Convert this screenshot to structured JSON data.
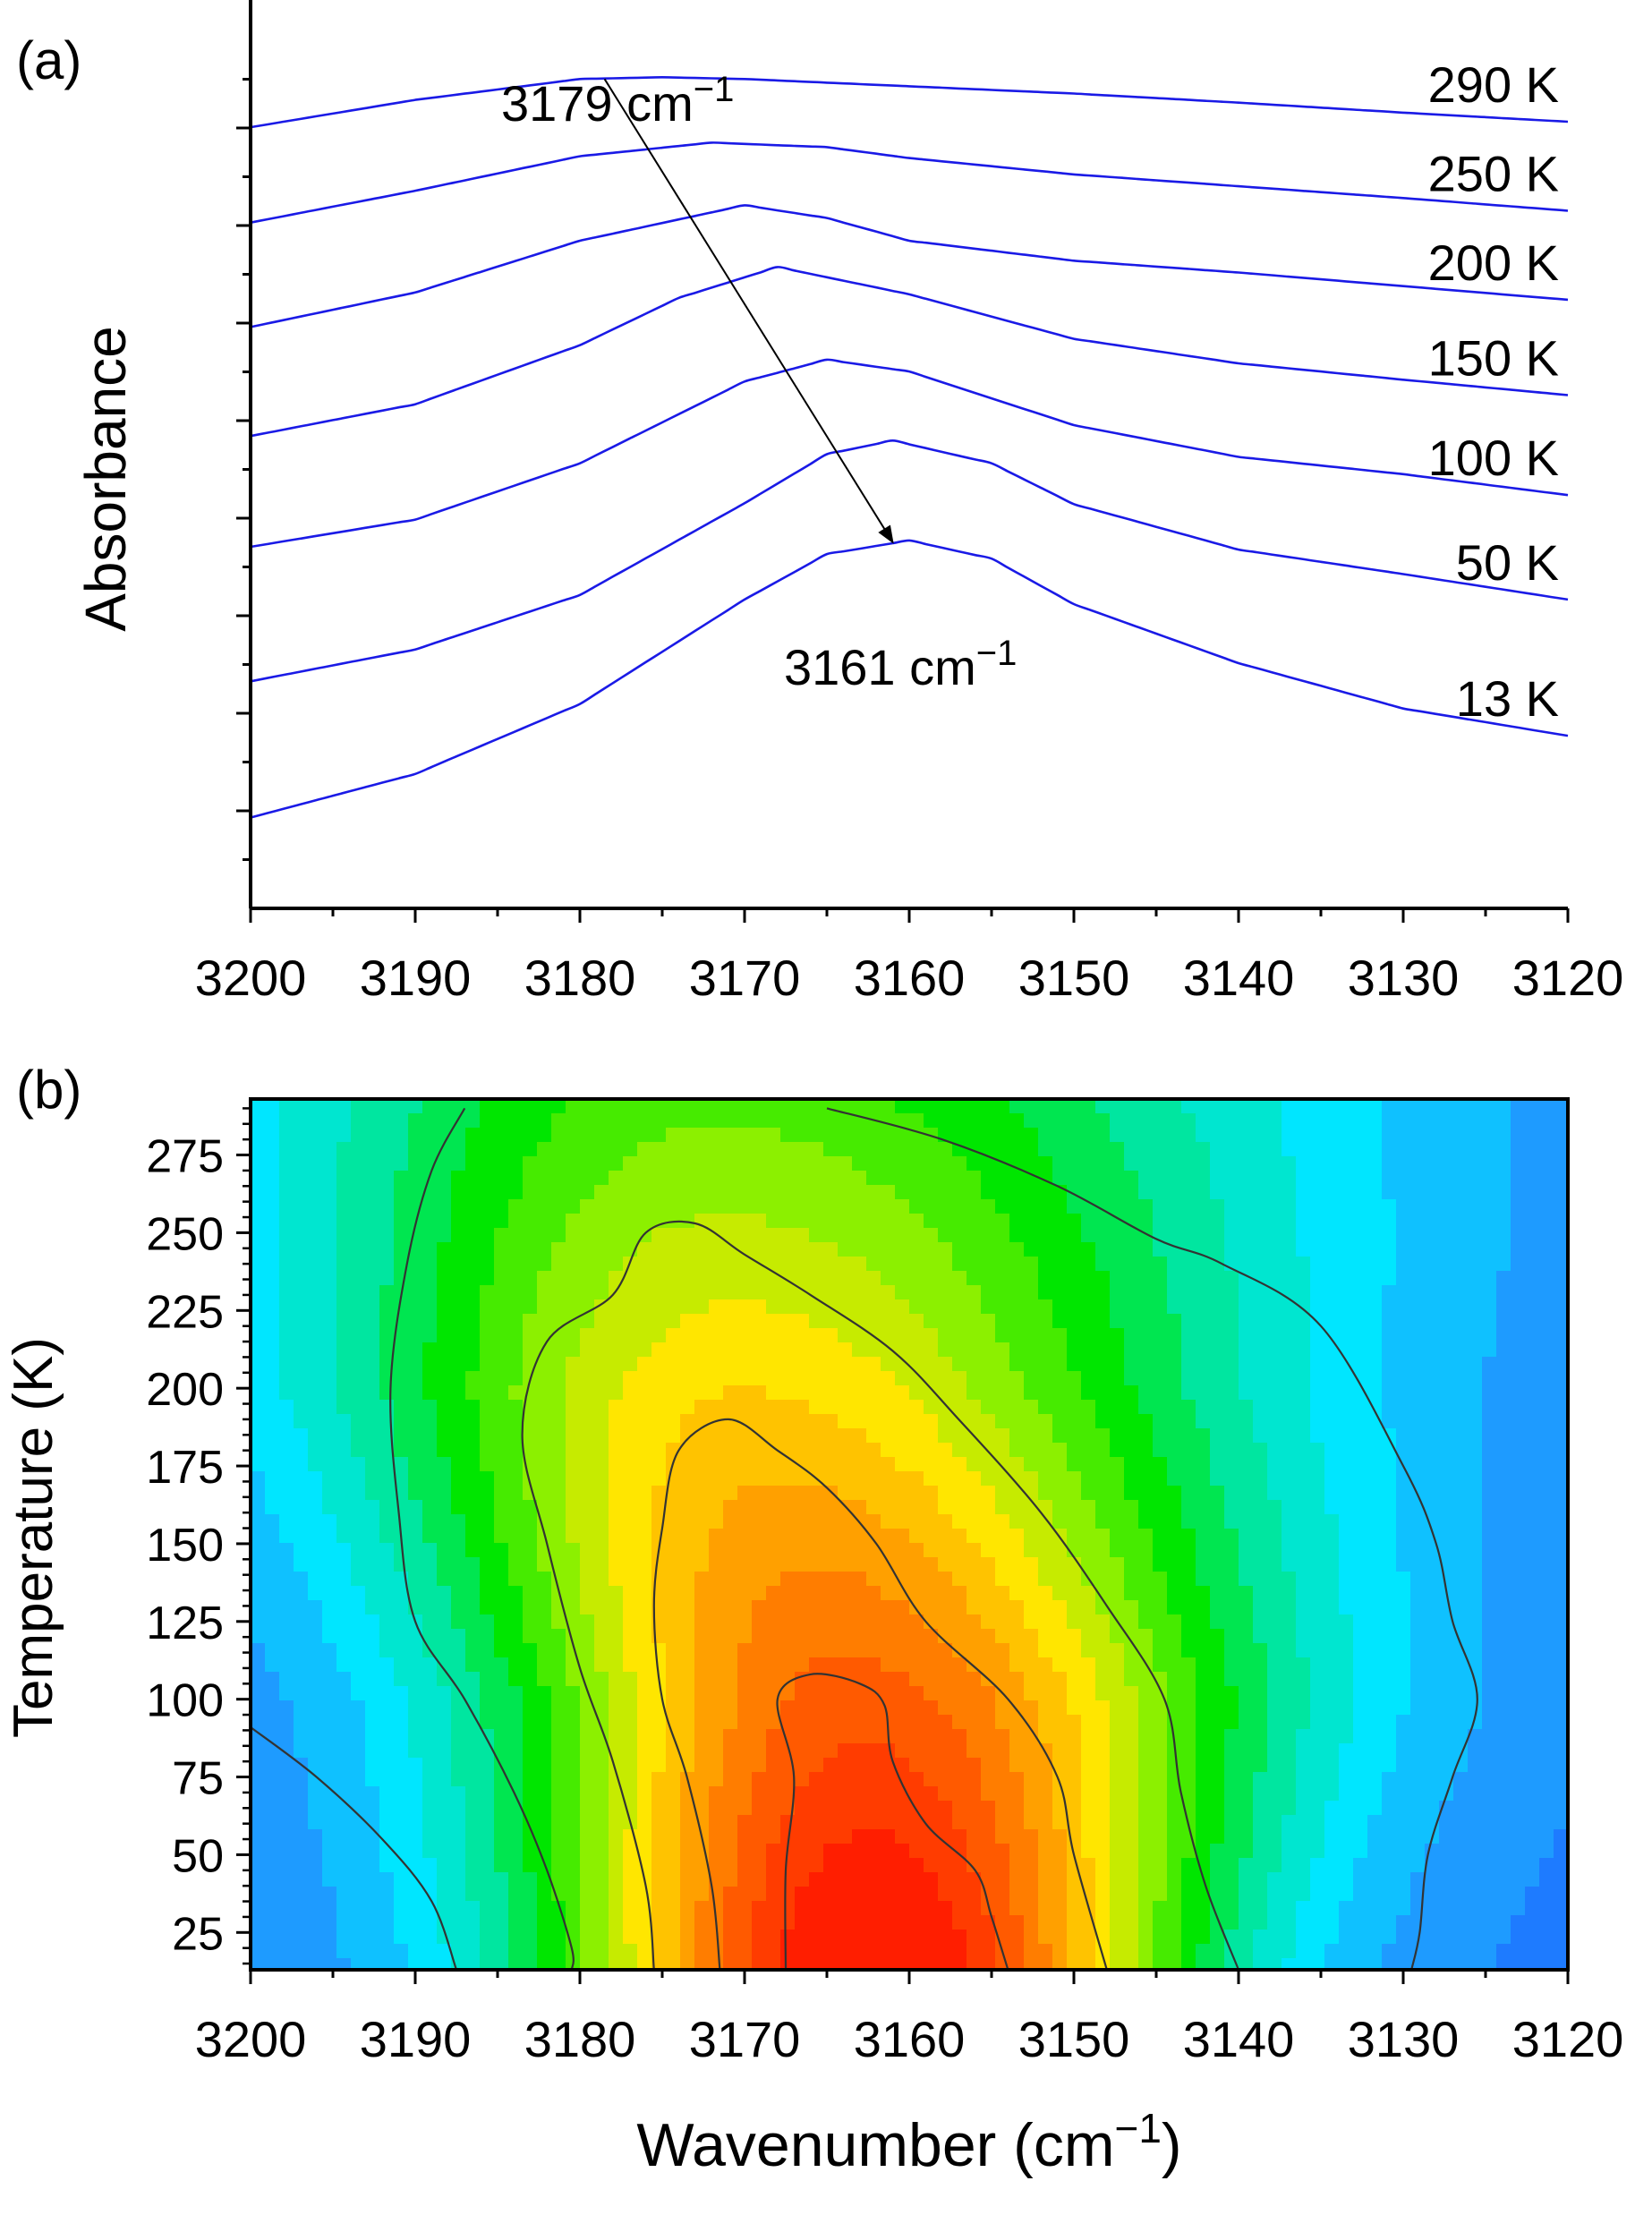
{
  "figure": {
    "panel_a_label": "(a)",
    "panel_b_label": "(b)",
    "xlabel_main": "Wavenumber (cm",
    "xlabel_sup": "−1",
    "xlabel_close": ")"
  },
  "chart_data": [
    {
      "type": "line",
      "panel": "(a)",
      "ylabel": "Absorbance",
      "xlim": [
        3200,
        3120
      ],
      "x_ticks": [
        "3200",
        "3190",
        "3180",
        "3170",
        "3160",
        "3150",
        "3140",
        "3130",
        "3120"
      ],
      "line_color": "#1a1ae6",
      "series": [
        {
          "name": "290 K",
          "x": [
            3200,
            3190,
            3180,
            3175,
            3170,
            3160,
            3150,
            3140,
            3130,
            3120
          ],
          "y": [
            0.86,
            0.89,
            0.913,
            0.915,
            0.913,
            0.905,
            0.897,
            0.887,
            0.876,
            0.866
          ]
        },
        {
          "name": "250 K",
          "x": [
            3200,
            3190,
            3180,
            3172,
            3165,
            3160,
            3150,
            3140,
            3130,
            3120
          ],
          "y": [
            0.755,
            0.79,
            0.828,
            0.843,
            0.838,
            0.826,
            0.808,
            0.795,
            0.782,
            0.768
          ]
        },
        {
          "name": "200 K",
          "x": [
            3200,
            3190,
            3180,
            3170,
            3165,
            3160,
            3150,
            3140,
            3130,
            3120
          ],
          "y": [
            0.64,
            0.678,
            0.735,
            0.774,
            0.76,
            0.735,
            0.713,
            0.7,
            0.685,
            0.67
          ]
        },
        {
          "name": "150 K",
          "x": [
            3200,
            3190,
            3180,
            3174,
            3168,
            3160,
            3150,
            3140,
            3130,
            3120
          ],
          "y": [
            0.52,
            0.555,
            0.62,
            0.672,
            0.706,
            0.676,
            0.627,
            0.6,
            0.582,
            0.565
          ]
        },
        {
          "name": "100 K",
          "x": [
            3200,
            3190,
            3180,
            3170,
            3165,
            3160,
            3150,
            3140,
            3130,
            3120
          ],
          "y": [
            0.398,
            0.428,
            0.49,
            0.58,
            0.604,
            0.591,
            0.532,
            0.497,
            0.478,
            0.455
          ]
        },
        {
          "name": "50 K",
          "x": [
            3200,
            3190,
            3180,
            3170,
            3165,
            3161,
            3155,
            3150,
            3140,
            3130,
            3120
          ],
          "y": [
            0.25,
            0.285,
            0.345,
            0.446,
            0.5,
            0.515,
            0.49,
            0.445,
            0.395,
            0.368,
            0.34
          ]
        },
        {
          "name": "13 K",
          "x": [
            3200,
            3190,
            3180,
            3170,
            3165,
            3160,
            3155,
            3150,
            3140,
            3130,
            3120
          ],
          "y": [
            0.1,
            0.148,
            0.225,
            0.34,
            0.39,
            0.405,
            0.385,
            0.335,
            0.27,
            0.22,
            0.19
          ]
        }
      ],
      "annotations": [
        {
          "text": "3179 cm",
          "sup": "−1",
          "x": 3179
        },
        {
          "text": "3161 cm",
          "sup": "−1",
          "x": 3161
        }
      ],
      "arrow": {
        "from": {
          "x": 3178.5,
          "y": 0.913
        },
        "to": {
          "x": 3161,
          "y": 0.403
        }
      }
    },
    {
      "type": "heatmap",
      "panel": "(b)",
      "xlabel": "Wavenumber (cm−1)",
      "ylabel": "Temperature (K)",
      "xlim": [
        3200,
        3120
      ],
      "ylim": [
        13,
        293
      ],
      "x_ticks": [
        "3200",
        "3190",
        "3180",
        "3170",
        "3160",
        "3150",
        "3140",
        "3130",
        "3120"
      ],
      "y_ticks": [
        "25",
        "50",
        "75",
        "100",
        "125",
        "150",
        "175",
        "200",
        "225",
        "250",
        "275"
      ],
      "colormap": [
        "#1e5aff",
        "#1e9bff",
        "#00e6ff",
        "#00e6a0",
        "#00e600",
        "#8cf000",
        "#ffe600",
        "#ffa000",
        "#ff5a00",
        "#ff1e00"
      ],
      "peak_center": [
        {
          "T": 13,
          "x": 3162
        },
        {
          "T": 100,
          "x": 3163
        },
        {
          "T": 200,
          "x": 3170
        },
        {
          "T": 290,
          "x": 3172
        }
      ],
      "contours": [
        {
          "level": 0.25,
          "points": [
            [
              3200,
              91
            ],
            [
              3196,
              75
            ],
            [
              3192,
              55
            ],
            [
              3189,
              35
            ],
            [
              3187.5,
              13
            ]
          ]
        },
        {
          "level": 0.45,
          "points": [
            [
              3187,
              290
            ],
            [
              3189,
              270
            ],
            [
              3190.5,
              240
            ],
            [
              3191.5,
              200
            ],
            [
              3191,
              160
            ],
            [
              3190,
              125
            ],
            [
              3187,
              100
            ],
            [
              3184,
              70
            ],
            [
              3182,
              45
            ],
            [
              3180.5,
              20
            ],
            [
              3180.5,
              13
            ]
          ]
        },
        {
          "level": 0.45,
          "points": [
            [
              3165,
              290
            ],
            [
              3158,
              280
            ],
            [
              3151,
              265
            ],
            [
              3145,
              248
            ],
            [
              3141,
              240
            ],
            [
              3135,
              220
            ],
            [
              3130,
              175
            ],
            [
              3128,
              150
            ],
            [
              3127,
              125
            ],
            [
              3125.5,
              100
            ],
            [
              3127,
              75
            ],
            [
              3128.5,
              50
            ],
            [
              3129,
              25
            ],
            [
              3129.5,
              13
            ]
          ]
        },
        {
          "level": 0.6,
          "points": [
            [
              3175.5,
              13
            ],
            [
              3176,
              40
            ],
            [
              3178,
              80
            ],
            [
              3180,
              110
            ],
            [
              3182,
              150
            ],
            [
              3183.5,
              185
            ],
            [
              3182,
              215
            ],
            [
              3178,
              230
            ],
            [
              3176,
              250
            ],
            [
              3173,
              253
            ],
            [
              3170,
              243
            ],
            [
              3166,
              230
            ],
            [
              3161,
              212
            ],
            [
              3157,
              190
            ],
            [
              3152,
              160
            ],
            [
              3148,
              130
            ],
            [
              3144.5,
              100
            ],
            [
              3143.5,
              70
            ],
            [
              3142,
              40
            ],
            [
              3140,
              13
            ]
          ]
        },
        {
          "level": 0.75,
          "points": [
            [
              3171.5,
              13
            ],
            [
              3172,
              40
            ],
            [
              3173.5,
              75
            ],
            [
              3175,
              100
            ],
            [
              3175.5,
              130
            ],
            [
              3175,
              155
            ],
            [
              3174,
              180
            ],
            [
              3171,
              190
            ],
            [
              3168,
              180
            ],
            [
              3165,
              168
            ],
            [
              3162,
              150
            ],
            [
              3159,
              125
            ],
            [
              3154,
              100
            ],
            [
              3151,
              75
            ],
            [
              3150,
              50
            ],
            [
              3148,
              13
            ]
          ]
        },
        {
          "level": 0.9,
          "points": [
            [
              3167.5,
              13
            ],
            [
              3167.5,
              45
            ],
            [
              3167,
              75
            ],
            [
              3168,
              100
            ],
            [
              3166,
              108
            ],
            [
              3163,
              105
            ],
            [
              3161.5,
              98
            ],
            [
              3161,
              80
            ],
            [
              3159,
              60
            ],
            [
              3156,
              45
            ],
            [
              3155,
              30
            ],
            [
              3154,
              13
            ]
          ]
        }
      ]
    }
  ]
}
